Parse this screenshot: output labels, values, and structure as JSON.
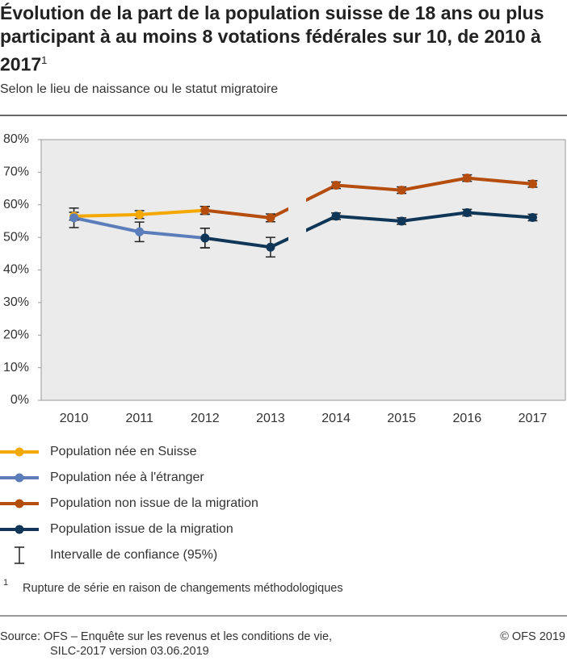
{
  "chart_data": {
    "type": "line",
    "title": "Évolution de la part de la population suisse de 18 ans ou plus participant à au moins 8 votations fédérales sur 10, de 2010 à 2017",
    "title_note": "1",
    "subtitle": "Selon le lieu de naissance ou le statut migratoire",
    "categories": [
      "2010",
      "2011",
      "2012",
      "2013",
      "2014",
      "2015",
      "2016",
      "2017"
    ],
    "ylim": [
      0,
      80
    ],
    "yticks": [
      {
        "value": 0,
        "label": "0%"
      },
      {
        "value": 10,
        "label": "10%"
      },
      {
        "value": 20,
        "label": "20%"
      },
      {
        "value": 30,
        "label": "30%"
      },
      {
        "value": 40,
        "label": "40%"
      },
      {
        "value": 50,
        "label": "50%"
      },
      {
        "value": 60,
        "label": "60%"
      },
      {
        "value": 70,
        "label": "70%"
      },
      {
        "value": 80,
        "label": "80%"
      }
    ],
    "series": [
      {
        "name": "Population née en Suisse",
        "color": "#f5a800",
        "values": [
          56.5,
          57,
          58.3,
          null,
          null,
          null,
          null,
          null
        ],
        "errors": [
          1.2,
          1.2,
          1.2,
          null,
          null,
          null,
          null,
          null
        ]
      },
      {
        "name": "Population née à l'étranger",
        "color": "#5b7dba",
        "values": [
          56,
          51.7,
          49.8,
          null,
          null,
          null,
          null,
          null
        ],
        "errors": [
          3,
          3,
          3,
          null,
          null,
          null,
          null,
          null
        ]
      },
      {
        "name": "Population non issue de la migration",
        "color": "#b54d0e",
        "values": [
          null,
          null,
          58.3,
          56,
          66,
          64.5,
          68.2,
          66.4
        ],
        "errors": [
          null,
          null,
          1.2,
          1.2,
          1,
          1,
          1,
          1
        ]
      },
      {
        "name": "Population issue de la migration",
        "color": "#0f3557",
        "values": [
          null,
          null,
          49.8,
          47,
          56.5,
          55,
          57.6,
          56.1
        ],
        "errors": [
          null,
          null,
          3,
          3,
          1,
          1,
          1,
          1
        ]
      }
    ],
    "ci_label": "Intervalle de confiance (95%)",
    "footnote": {
      "mark": "1",
      "text": "Rupture de série en raison de changements méthodologiques"
    },
    "source": [
      "Source: OFS – Enquête sur les revenus et les conditions de vie,",
      "SILC-2017 version 03.06.2019"
    ],
    "copyright": "© OFS 2019"
  }
}
